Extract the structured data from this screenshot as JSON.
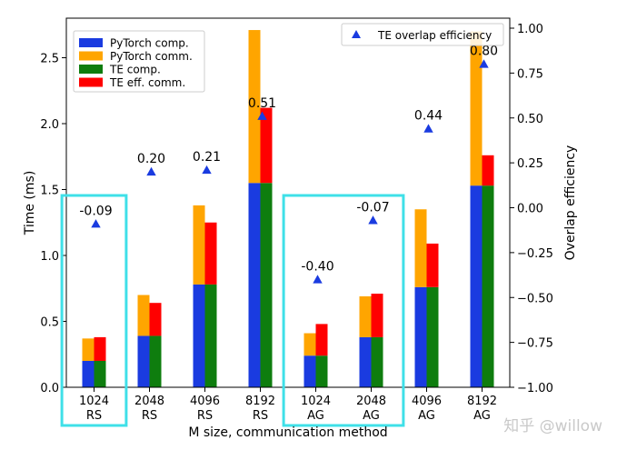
{
  "chart_data": {
    "type": "bar",
    "categories": [
      {
        "size": "1024",
        "method": "RS"
      },
      {
        "size": "2048",
        "method": "RS"
      },
      {
        "size": "4096",
        "method": "RS"
      },
      {
        "size": "8192",
        "method": "RS"
      },
      {
        "size": "1024",
        "method": "AG"
      },
      {
        "size": "2048",
        "method": "AG"
      },
      {
        "size": "4096",
        "method": "AG"
      },
      {
        "size": "8192",
        "method": "AG"
      }
    ],
    "series": [
      {
        "name": "PyTorch comp.",
        "color": "#1a3be0",
        "group": "pytorch",
        "values": [
          0.2,
          0.39,
          0.78,
          1.55,
          0.24,
          0.38,
          0.76,
          1.53
        ]
      },
      {
        "name": "PyTorch comm.",
        "color": "#ffa500",
        "group": "pytorch",
        "values": [
          0.17,
          0.31,
          0.6,
          1.16,
          0.17,
          0.31,
          0.59,
          1.17
        ]
      },
      {
        "name": "TE comp.",
        "color": "#0e7d0e",
        "group": "te",
        "values": [
          0.2,
          0.39,
          0.78,
          1.55,
          0.24,
          0.38,
          0.76,
          1.53
        ]
      },
      {
        "name": "TE eff. comm.",
        "color": "#ff0000",
        "group": "te",
        "values": [
          0.18,
          0.25,
          0.47,
          0.57,
          0.24,
          0.33,
          0.33,
          0.23
        ]
      }
    ],
    "overlap_efficiency": {
      "name": "TE overlap efficiency",
      "color": "#1a3be0",
      "values": [
        -0.09,
        0.2,
        0.21,
        0.51,
        -0.4,
        -0.07,
        0.44,
        0.8
      ],
      "labels": [
        "-0.09",
        "0.20",
        "0.21",
        "0.51",
        "-0.40",
        "-0.07",
        "0.44",
        "0.80"
      ]
    },
    "xlabel": "M size, communication method",
    "ylabel": "Time (ms)",
    "y2label": "Overlap efficiency",
    "ylim": [
      0,
      2.8
    ],
    "y2lim": [
      -1.0,
      1.0
    ],
    "yticks": [
      "0.0",
      "0.5",
      "1.0",
      "1.5",
      "2.0",
      "2.5"
    ],
    "y2ticks": [
      "−1.00",
      "−0.75",
      "−0.50",
      "−0.25",
      "0.00",
      "0.25",
      "0.50",
      "0.75",
      "1.00"
    ],
    "legend_left_placement": "top-left",
    "legend_right_placement": "top-right",
    "highlight_boxes": [
      {
        "from_category": 0,
        "to_category": 0,
        "color": "#3fe0e8"
      },
      {
        "from_category": 4,
        "to_category": 5,
        "color": "#3fe0e8"
      }
    ],
    "grid": false
  },
  "watermark": "知乎 @willow"
}
